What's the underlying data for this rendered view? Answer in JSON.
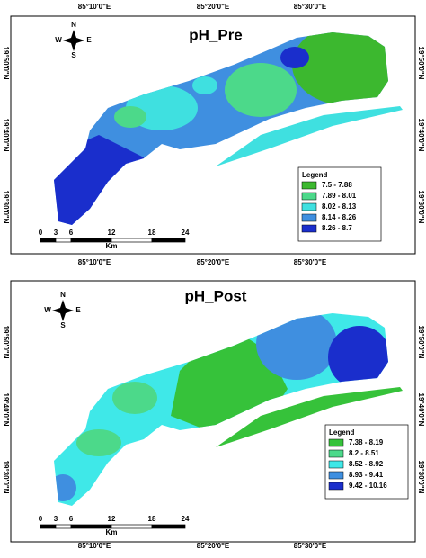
{
  "panels": [
    {
      "title": "pH_Pre",
      "top_labels": [
        "85°10'0\"E",
        "85°20'0\"E",
        "85°30'0\"E"
      ],
      "bottom_labels": [
        "85°10'0\"E",
        "85°20'0\"E",
        "85°30'0\"E"
      ],
      "left_labels": [
        "19°50'0\"N",
        "19°40'0\"N",
        "19°30'0\"N"
      ],
      "right_labels": [
        "19°50'0\"N",
        "19°40'0\"N",
        "19°30'0\"N"
      ],
      "compass": {
        "n": "N",
        "w": "W",
        "e": "E",
        "s": "S"
      },
      "scale_labels": [
        "0",
        "3",
        "6",
        "12",
        "18",
        "24"
      ],
      "scale_unit": "Km",
      "legend": {
        "title": "Legend",
        "items": [
          {
            "label": "7.5 - 7.88",
            "color": "#3cb82f"
          },
          {
            "label": "7.89 - 8.01",
            "color": "#4cd98a"
          },
          {
            "label": "8.02 - 8.13",
            "color": "#3fe0e0"
          },
          {
            "label": "8.14 - 8.26",
            "color": "#3f8fe0"
          },
          {
            "label": "8.26 - 8.7",
            "color": "#1a2ecc"
          }
        ]
      }
    },
    {
      "title": "pH_Post",
      "bottom_labels": [
        "85°10'0\"E",
        "85°20'0\"E",
        "85°30'0\"E"
      ],
      "left_labels": [
        "19°50'0\"N",
        "19°40'0\"N",
        "19°30'0\"N"
      ],
      "right_labels": [
        "19°50'0\"N",
        "19°40'0\"N",
        "19°30'0\"N"
      ],
      "compass": {
        "n": "N",
        "w": "W",
        "e": "E",
        "s": "S"
      },
      "scale_labels": [
        "0",
        "3",
        "6",
        "12",
        "18",
        "24"
      ],
      "scale_unit": "Km",
      "legend": {
        "title": "Legend",
        "items": [
          {
            "label": "7.38 - 8.19",
            "color": "#36c23a"
          },
          {
            "label": "8.2 - 8.51",
            "color": "#4cd98a"
          },
          {
            "label": "8.52 - 8.92",
            "color": "#3fe8e8"
          },
          {
            "label": "8.93 - 9.41",
            "color": "#3f8fe0"
          },
          {
            "label": "9.42 - 10.16",
            "color": "#1a2ecc"
          }
        ]
      }
    }
  ]
}
